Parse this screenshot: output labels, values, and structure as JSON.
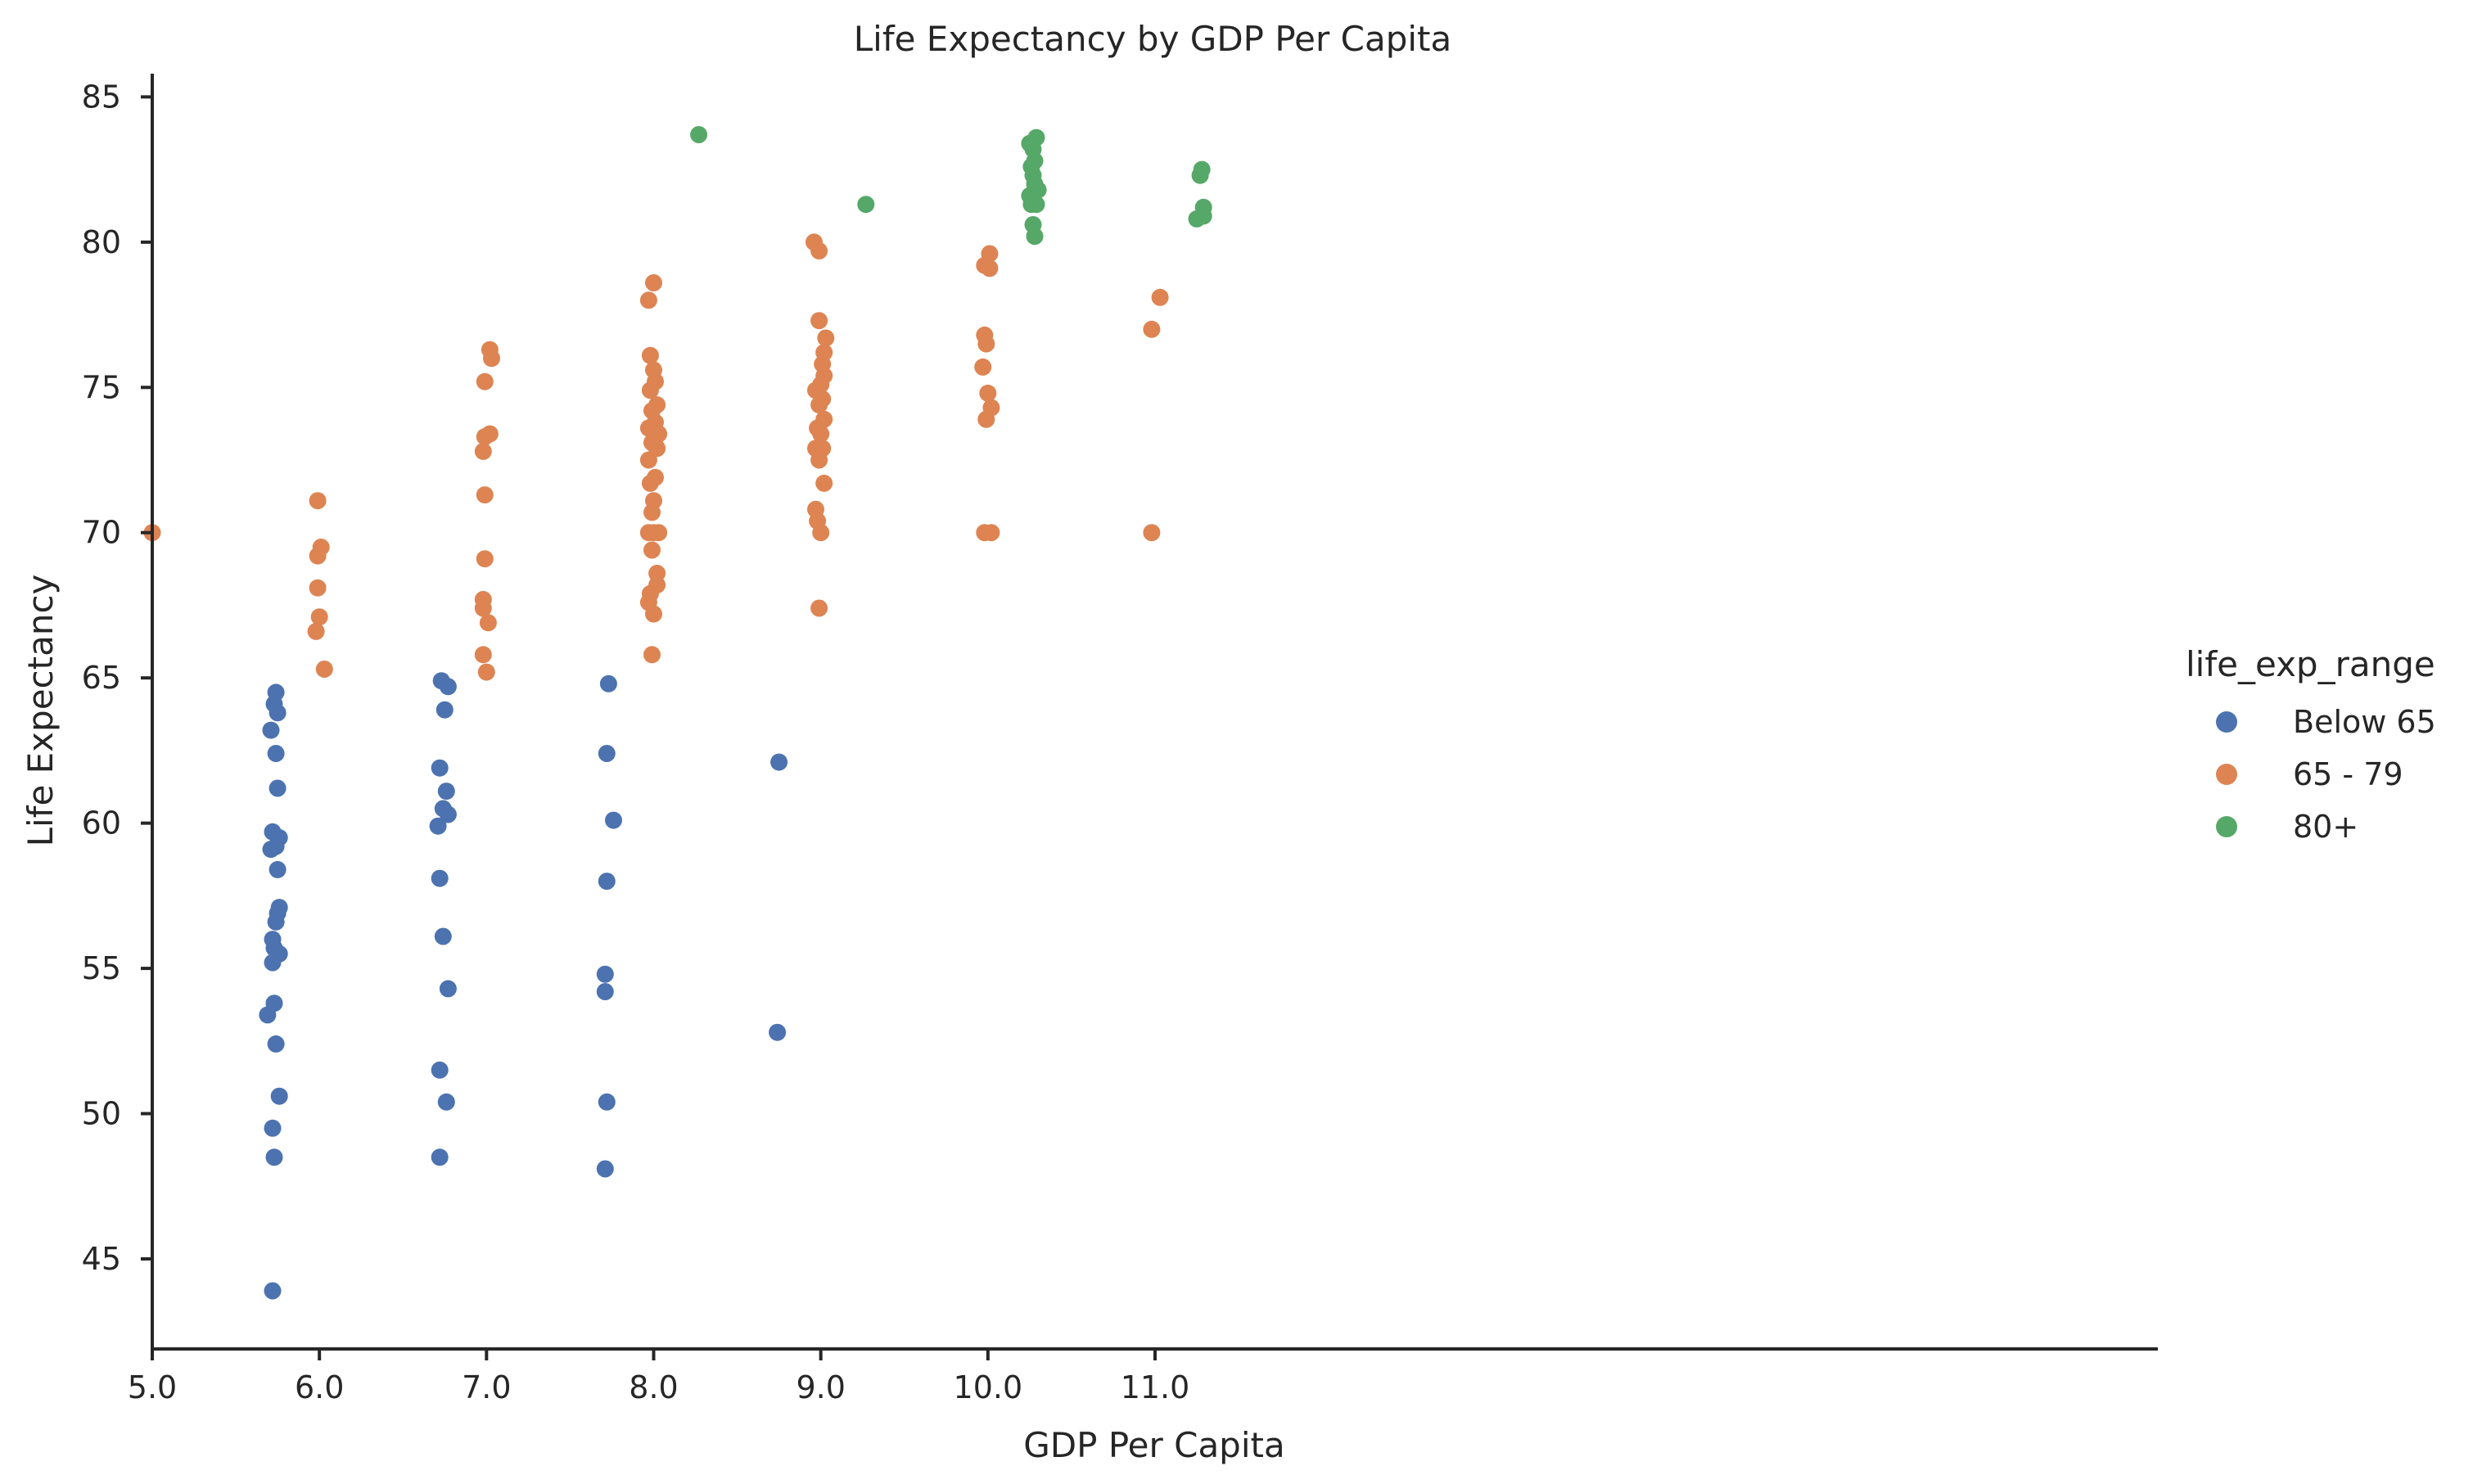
{
  "colors": {
    "Below 65": "#4c72b0",
    "65 - 79": "#dd8452",
    "80+": "#55a868",
    "axis": "#262626",
    "background": "#ffffff"
  },
  "chart_data": {
    "type": "scatter",
    "title": "Life Expectancy by GDP Per Capita",
    "xlabel": "GDP Per Capita",
    "ylabel": "Life Expectancy",
    "xlim": [
      5.0,
      17.0
    ],
    "ylim": [
      41.9,
      85.8
    ],
    "xticks": [
      5.0,
      6.0,
      7.0,
      8.0,
      9.0,
      10.0,
      11.0
    ],
    "xtick_labels": [
      "5.0",
      "6.0",
      "7.0",
      "8.0",
      "9.0",
      "10.0",
      "11.0"
    ],
    "yticks": [
      45,
      50,
      55,
      60,
      65,
      70,
      75,
      80,
      85
    ],
    "ytick_labels": [
      "45",
      "50",
      "55",
      "60",
      "65",
      "70",
      "75",
      "80",
      "85"
    ],
    "grid": false,
    "legend": {
      "title": "life_exp_range",
      "placement": "right",
      "entries": [
        "Below 65",
        "65 - 79",
        "80+"
      ]
    },
    "series": [
      {
        "name": "Below 65",
        "points": [
          [
            5.72,
            43.9
          ],
          [
            5.73,
            48.5
          ],
          [
            5.72,
            49.5
          ],
          [
            5.76,
            50.6
          ],
          [
            5.74,
            52.4
          ],
          [
            5.73,
            53.8
          ],
          [
            5.69,
            53.4
          ],
          [
            5.72,
            55.2
          ],
          [
            5.76,
            55.5
          ],
          [
            5.73,
            55.7
          ],
          [
            5.72,
            56.0
          ],
          [
            5.74,
            56.6
          ],
          [
            5.75,
            56.9
          ],
          [
            5.76,
            57.1
          ],
          [
            5.75,
            58.4
          ],
          [
            5.71,
            59.1
          ],
          [
            5.74,
            59.2
          ],
          [
            5.72,
            59.7
          ],
          [
            5.76,
            59.5
          ],
          [
            5.75,
            61.2
          ],
          [
            5.74,
            62.4
          ],
          [
            5.71,
            63.2
          ],
          [
            5.75,
            63.8
          ],
          [
            5.73,
            64.1
          ],
          [
            5.74,
            64.5
          ],
          [
            6.72,
            48.5
          ],
          [
            6.76,
            50.4
          ],
          [
            6.72,
            51.5
          ],
          [
            6.77,
            54.3
          ],
          [
            6.74,
            56.1
          ],
          [
            6.72,
            58.1
          ],
          [
            6.71,
            59.9
          ],
          [
            6.74,
            60.5
          ],
          [
            6.77,
            60.3
          ],
          [
            6.76,
            61.1
          ],
          [
            6.72,
            61.9
          ],
          [
            6.75,
            63.9
          ],
          [
            6.73,
            64.9
          ],
          [
            6.77,
            64.7
          ],
          [
            7.71,
            48.1
          ],
          [
            7.72,
            50.4
          ],
          [
            7.71,
            54.2
          ],
          [
            7.71,
            54.8
          ],
          [
            7.72,
            58.0
          ],
          [
            7.76,
            60.1
          ],
          [
            7.72,
            62.4
          ],
          [
            7.73,
            64.8
          ],
          [
            8.74,
            52.8
          ],
          [
            8.75,
            62.1
          ]
        ]
      },
      {
        "name": "65 - 79",
        "points": [
          [
            5.0,
            70.0
          ],
          [
            6.03,
            65.3
          ],
          [
            5.98,
            66.6
          ],
          [
            6.0,
            67.1
          ],
          [
            5.99,
            68.1
          ],
          [
            5.99,
            69.2
          ],
          [
            6.01,
            69.5
          ],
          [
            5.99,
            71.1
          ],
          [
            7.0,
            65.2
          ],
          [
            6.98,
            65.8
          ],
          [
            7.01,
            66.9
          ],
          [
            6.98,
            67.4
          ],
          [
            6.98,
            67.7
          ],
          [
            6.99,
            69.1
          ],
          [
            6.99,
            71.3
          ],
          [
            6.98,
            72.8
          ],
          [
            6.99,
            73.3
          ],
          [
            7.02,
            73.4
          ],
          [
            6.99,
            75.2
          ],
          [
            7.03,
            76.0
          ],
          [
            7.02,
            76.3
          ],
          [
            7.99,
            65.8
          ],
          [
            8.0,
            67.2
          ],
          [
            8.02,
            68.2
          ],
          [
            8.02,
            68.6
          ],
          [
            7.97,
            67.6
          ],
          [
            7.98,
            67.9
          ],
          [
            7.99,
            69.4
          ],
          [
            7.97,
            70.0
          ],
          [
            8.0,
            70.0
          ],
          [
            8.03,
            70.0
          ],
          [
            7.99,
            70.7
          ],
          [
            8.0,
            71.1
          ],
          [
            7.98,
            71.7
          ],
          [
            8.01,
            71.9
          ],
          [
            7.97,
            72.5
          ],
          [
            8.02,
            72.9
          ],
          [
            7.99,
            73.1
          ],
          [
            8.03,
            73.4
          ],
          [
            7.97,
            73.6
          ],
          [
            8.01,
            73.8
          ],
          [
            7.99,
            74.2
          ],
          [
            8.02,
            74.4
          ],
          [
            7.98,
            74.9
          ],
          [
            8.01,
            75.2
          ],
          [
            8.0,
            75.6
          ],
          [
            7.98,
            76.1
          ],
          [
            7.97,
            78.0
          ],
          [
            8.0,
            78.6
          ],
          [
            8.01,
            73.0
          ],
          [
            8.99,
            67.4
          ],
          [
            9.0,
            70.0
          ],
          [
            8.98,
            70.4
          ],
          [
            8.97,
            70.8
          ],
          [
            9.02,
            71.7
          ],
          [
            8.99,
            72.5
          ],
          [
            9.01,
            72.9
          ],
          [
            8.97,
            72.9
          ],
          [
            9.0,
            73.4
          ],
          [
            8.98,
            73.6
          ],
          [
            9.02,
            73.9
          ],
          [
            8.99,
            74.4
          ],
          [
            9.01,
            74.6
          ],
          [
            8.97,
            74.9
          ],
          [
            9.0,
            75.1
          ],
          [
            9.02,
            75.4
          ],
          [
            9.01,
            75.8
          ],
          [
            9.02,
            76.2
          ],
          [
            9.03,
            76.7
          ],
          [
            8.99,
            77.3
          ],
          [
            8.99,
            79.7
          ],
          [
            8.96,
            80.0
          ],
          [
            9.98,
            70.0
          ],
          [
            10.02,
            70.0
          ],
          [
            9.99,
            73.9
          ],
          [
            10.02,
            74.3
          ],
          [
            10.0,
            74.8
          ],
          [
            9.97,
            75.7
          ],
          [
            9.99,
            76.5
          ],
          [
            9.98,
            76.8
          ],
          [
            9.98,
            79.2
          ],
          [
            10.01,
            79.1
          ],
          [
            10.01,
            79.6
          ],
          [
            10.98,
            70.0
          ],
          [
            10.98,
            77.0
          ],
          [
            11.03,
            78.1
          ]
        ]
      },
      {
        "name": "80+",
        "points": [
          [
            8.27,
            83.7
          ],
          [
            9.27,
            81.3
          ],
          [
            10.28,
            80.2
          ],
          [
            10.27,
            80.6
          ],
          [
            10.26,
            81.3
          ],
          [
            10.29,
            81.3
          ],
          [
            10.25,
            81.6
          ],
          [
            10.3,
            81.8
          ],
          [
            10.28,
            82.0
          ],
          [
            10.27,
            82.3
          ],
          [
            10.26,
            82.6
          ],
          [
            10.28,
            82.8
          ],
          [
            10.27,
            83.2
          ],
          [
            10.25,
            83.4
          ],
          [
            10.29,
            83.6
          ],
          [
            11.25,
            80.8
          ],
          [
            11.29,
            80.9
          ],
          [
            11.29,
            81.2
          ],
          [
            11.27,
            82.3
          ],
          [
            11.28,
            82.5
          ]
        ]
      }
    ]
  }
}
